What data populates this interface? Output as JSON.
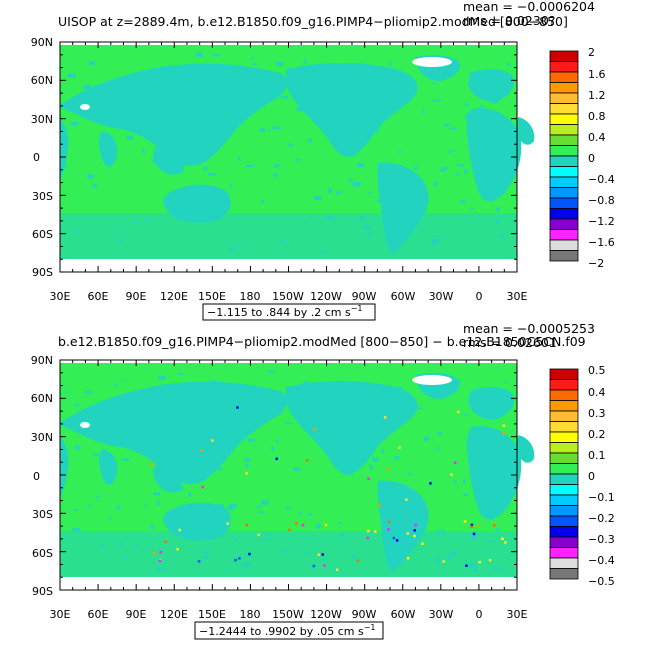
{
  "panels": [
    {
      "title": "UISOP at z=2889.4m, b.e12.B1850.f09_g16.PIMP4−pliomip2.modMed [800−850]",
      "mean_text": "mean = −0.0006204",
      "rms_text": "rms = 0.0230?",
      "range_text": "−1.115 to .844 by .2 cm s",
      "range_sup": "−1",
      "colorbar_labels": [
        "2",
        "1.6",
        "1.2",
        "0.8",
        "0.4",
        "0",
        "−0.4",
        "−0.8",
        "−1.2",
        "−1.6",
        "−2"
      ]
    },
    {
      "title": "b.e12.B1850.f09_g16.PIMP4−pliomip2.modMed [800−850] − b.e12.B1850C5CN.f09",
      "mean_text": "mean = −0.0005253",
      "rms_text": "rms = 0.02601",
      "range_text": "−1.2444 to .9902 by .05 cm s",
      "range_sup": "−1",
      "colorbar_labels": [
        "0.5",
        "0.4",
        "0.3",
        "0.2",
        "0.1",
        "0",
        "−0.1",
        "−0.2",
        "−0.3",
        "−0.4",
        "−0.5"
      ]
    }
  ],
  "lat_labels": [
    "90N",
    "60N",
    "30N",
    "0",
    "30S",
    "60S",
    "90S"
  ],
  "lon_labels": [
    "30E",
    "60E",
    "90E",
    "120E",
    "150E",
    "180",
    "150W",
    "120W",
    "90W",
    "60W",
    "30W",
    "0",
    "30E"
  ],
  "colors": {
    "ocean_zero": "#33ee55",
    "land_positive_small": "#22d4c0",
    "missing_ice": "#ffffff",
    "palette": [
      "#cc0000",
      "#ff1a1a",
      "#ff6a00",
      "#ff9900",
      "#ffbb33",
      "#ffdd33",
      "#ffff00",
      "#bbee22",
      "#66dd33",
      "#33ee55",
      "#22d4c0",
      "#00ffff",
      "#00ccff",
      "#0099ff",
      "#0055ff",
      "#0000ee",
      "#8800cc",
      "#ff22ff",
      "#dddddd",
      "#777777"
    ]
  }
}
